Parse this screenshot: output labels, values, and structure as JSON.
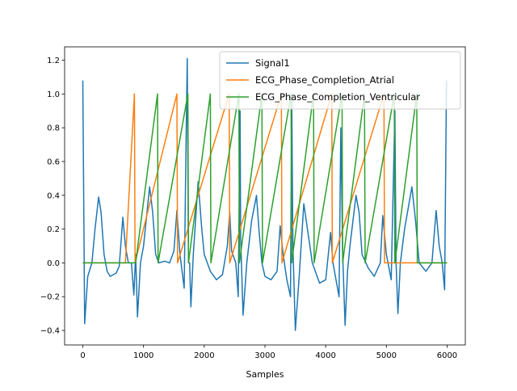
{
  "chart_data": {
    "type": "line",
    "xlabel": "Samples",
    "xlim": [
      -300,
      6300
    ],
    "ylim": [
      -0.486,
      1.279
    ],
    "xticks": [
      0,
      1000,
      2000,
      3000,
      4000,
      5000,
      6000
    ],
    "yticks": [
      {
        "value": -0.4,
        "label": "−0.4"
      },
      {
        "value": -0.2,
        "label": "−0.2"
      },
      {
        "value": 0,
        "label": "0.0"
      },
      0.2,
      0.4,
      0.6,
      0.8,
      {
        "value": 1,
        "label": "1.0"
      },
      1.2
    ],
    "legend": "upper right",
    "series": [
      {
        "name": "Signal1",
        "color": "#1f77b4",
        "x": [
          0,
          30,
          80,
          150,
          200,
          260,
          300,
          350,
          400,
          450,
          550,
          600,
          660,
          700,
          750,
          800,
          840,
          870,
          900,
          950,
          1000,
          1100,
          1150,
          1200,
          1250,
          1350,
          1430,
          1500,
          1550,
          1600,
          1670,
          1700,
          1720,
          1740,
          1760,
          1780,
          1820,
          1900,
          1960,
          2000,
          2100,
          2200,
          2300,
          2380,
          2420,
          2450,
          2520,
          2560,
          2590,
          2600,
          2640,
          2700,
          2780,
          2860,
          2900,
          2950,
          3000,
          3100,
          3200,
          3250,
          3300,
          3360,
          3420,
          3440,
          3460,
          3500,
          3560,
          3640,
          3700,
          3780,
          3900,
          4000,
          4080,
          4120,
          4220,
          4250,
          4280,
          4320,
          4360,
          4400,
          4500,
          4550,
          4600,
          4700,
          4800,
          4900,
          4940,
          5000,
          5080,
          5140,
          5160,
          5190,
          5230,
          5300,
          5420,
          5480,
          5540,
          5650,
          5750,
          5820,
          5870,
          5920,
          5960,
          5990
        ],
        "values": [
          1.08,
          -0.36,
          -0.08,
          0.0,
          0.2,
          0.39,
          0.3,
          0.05,
          -0.05,
          -0.08,
          -0.06,
          -0.02,
          0.27,
          0.1,
          0.0,
          0.0,
          -0.19,
          0.05,
          -0.32,
          0.0,
          0.1,
          0.45,
          0.3,
          0.05,
          0.0,
          0.01,
          0.0,
          0.07,
          0.31,
          0.05,
          -0.15,
          0.7,
          1.21,
          0.0,
          0.0,
          -0.26,
          0.05,
          0.48,
          0.2,
          0.05,
          -0.05,
          -0.1,
          -0.07,
          0.1,
          0.3,
          0.07,
          0.0,
          -0.2,
          0.9,
          0.15,
          -0.31,
          0.0,
          0.25,
          0.4,
          0.2,
          0.0,
          -0.08,
          -0.1,
          -0.05,
          0.22,
          0.05,
          -0.1,
          -0.2,
          1.0,
          0.1,
          -0.4,
          -0.1,
          0.35,
          0.2,
          0.0,
          -0.12,
          -0.1,
          0.18,
          0.0,
          -0.2,
          0.8,
          0.05,
          -0.37,
          -0.05,
          0.1,
          0.4,
          0.3,
          0.05,
          -0.03,
          -0.08,
          0.0,
          0.28,
          0.05,
          -0.1,
          0.9,
          0.0,
          -0.3,
          0.0,
          0.2,
          0.45,
          0.25,
          0.0,
          -0.05,
          0.0,
          0.31,
          0.1,
          0.0,
          -0.16,
          1.08
        ]
      },
      {
        "name": "ECG_Phase_Completion_Atrial",
        "color": "#ff7f0e",
        "x": [
          0,
          700,
          850,
          860,
          1550,
          1560,
          2410,
          2420,
          3270,
          3280,
          4100,
          4110,
          4960,
          4970,
          5150,
          6000
        ],
        "values": [
          0,
          0,
          1,
          0,
          1,
          0,
          1,
          0,
          1,
          0,
          1,
          0,
          1,
          0,
          0,
          0
        ]
      },
      {
        "name": "ECG_Phase_Completion_Ventricular",
        "color": "#2ca02c",
        "x": [
          0,
          870,
          1230,
          1240,
          1730,
          1740,
          2100,
          2110,
          2570,
          2580,
          2950,
          2960,
          3430,
          3440,
          3800,
          3810,
          4270,
          4280,
          4640,
          4650,
          5130,
          5140,
          5500,
          5510,
          6000
        ],
        "values": [
          0,
          0,
          1,
          0,
          1,
          0,
          1,
          0,
          1,
          0,
          1,
          0,
          1,
          0,
          1,
          0,
          1,
          0,
          1,
          0,
          1,
          0,
          1,
          0,
          0
        ]
      }
    ]
  }
}
